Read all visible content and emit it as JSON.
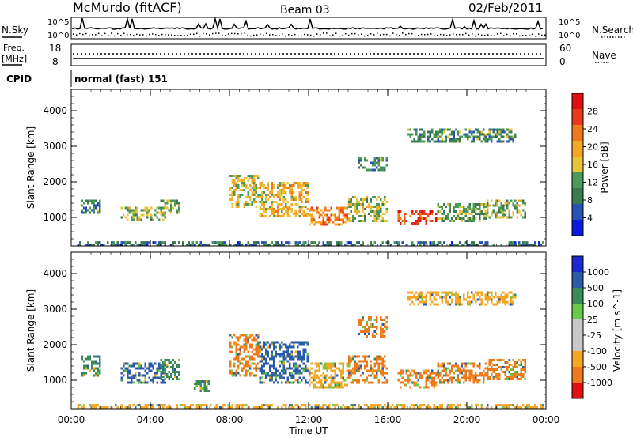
{
  "header": {
    "station": "McMurdo (fitACF)",
    "beam": "Beam 03",
    "date": "02/Feb/2011"
  },
  "aux_panels": {
    "left_labels": {
      "nsky": "N.Sky",
      "freq": "Freq.",
      "freq_unit": "[MHz]",
      "cpid": "CPID"
    },
    "right_labels": {
      "nsearch": "N.Search",
      "nave": "Nave"
    },
    "noise_ticks": [
      "10^5",
      "10^0"
    ],
    "noise_ticks_right": [
      "10^5",
      "10^0"
    ],
    "freq_ticks": [
      "18",
      "8"
    ],
    "nave_ticks": [
      "60",
      "0"
    ],
    "cpid_text": "normal (fast) 151"
  },
  "colors": {
    "power_scale": [
      "#0a1adc",
      "#2851b4",
      "#3a7a4e",
      "#4a9a5a",
      "#e8c43a",
      "#f5a623",
      "#f07a1a",
      "#e83a1a",
      "#e01010"
    ],
    "velocity_scale": [
      "#e01010",
      "#f07a1a",
      "#f5a623",
      "#c8c8c8",
      "#c8c8c8",
      "#6ac84a",
      "#3a8a5a",
      "#2a5aaa",
      "#1a2ad0"
    ]
  },
  "chart_data": [
    {
      "type": "heatmap",
      "name": "power",
      "xlabel": "",
      "ylabel": "Slant Range [km]",
      "ylim": [
        200,
        4600
      ],
      "yticks": [
        "1000",
        "2000",
        "3000",
        "4000"
      ],
      "colorbar_label": "Power [dB]",
      "colorbar_ticks": [
        "4",
        "8",
        "12",
        "16",
        "20",
        "24",
        "28"
      ],
      "colorbar_range": [
        0,
        32
      ],
      "cells": [
        {
          "x": [
            0.3,
            24.0
          ],
          "y": [
            230,
            330
          ],
          "v": 8
        },
        {
          "x": [
            0.5,
            1.5
          ],
          "y": [
            1100,
            1500
          ],
          "v": 10
        },
        {
          "x": [
            2.5,
            4.8
          ],
          "y": [
            900,
            1300
          ],
          "v": 14
        },
        {
          "x": [
            4.5,
            5.5
          ],
          "y": [
            1100,
            1500
          ],
          "v": 12
        },
        {
          "x": [
            8.0,
            9.5
          ],
          "y": [
            1300,
            2200
          ],
          "v": 16
        },
        {
          "x": [
            9.5,
            12.0
          ],
          "y": [
            1000,
            2000
          ],
          "v": 18
        },
        {
          "x": [
            12.0,
            14.0
          ],
          "y": [
            800,
            1300
          ],
          "v": 22
        },
        {
          "x": [
            14.0,
            16.0
          ],
          "y": [
            900,
            1600
          ],
          "v": 14
        },
        {
          "x": [
            16.5,
            18.5
          ],
          "y": [
            800,
            1200
          ],
          "v": 26
        },
        {
          "x": [
            18.5,
            21.0
          ],
          "y": [
            900,
            1400
          ],
          "v": 12
        },
        {
          "x": [
            21.0,
            23.0
          ],
          "y": [
            1000,
            1500
          ],
          "v": 14
        },
        {
          "x": [
            17.0,
            22.5
          ],
          "y": [
            3100,
            3500
          ],
          "v": 10
        },
        {
          "x": [
            14.5,
            16.0
          ],
          "y": [
            2300,
            2700
          ],
          "v": 10
        }
      ]
    },
    {
      "type": "heatmap",
      "name": "velocity",
      "xlabel": "Time UT",
      "ylabel": "Slant Range [km]",
      "ylim": [
        200,
        4600
      ],
      "yticks": [
        "1000",
        "2000",
        "3000",
        "4000"
      ],
      "xticks": [
        "00:00",
        "04:00",
        "08:00",
        "12:00",
        "16:00",
        "20:00",
        "00:00"
      ],
      "xlim": [
        0,
        24
      ],
      "colorbar_label": "Velocity [m s^-1]",
      "colorbar_ticks": [
        "1000",
        "500",
        "100",
        "25",
        "-25",
        "-100",
        "-500",
        "-1000"
      ],
      "cells": [
        {
          "x": [
            0.3,
            24.0
          ],
          "y": [
            230,
            330
          ],
          "v": -100
        },
        {
          "x": [
            0.5,
            1.5
          ],
          "y": [
            1100,
            1700
          ],
          "v": 100
        },
        {
          "x": [
            2.5,
            4.8
          ],
          "y": [
            900,
            1500
          ],
          "v": 500
        },
        {
          "x": [
            4.5,
            5.5
          ],
          "y": [
            1000,
            1600
          ],
          "v": 100
        },
        {
          "x": [
            6.2,
            7.0
          ],
          "y": [
            700,
            1000
          ],
          "v": 100
        },
        {
          "x": [
            8.0,
            9.5
          ],
          "y": [
            1100,
            2300
          ],
          "v": -500
        },
        {
          "x": [
            9.5,
            12.0
          ],
          "y": [
            900,
            2100
          ],
          "v": 500
        },
        {
          "x": [
            12.0,
            14.0
          ],
          "y": [
            800,
            1500
          ],
          "v": -100
        },
        {
          "x": [
            14.0,
            16.0
          ],
          "y": [
            900,
            1700
          ],
          "v": -500
        },
        {
          "x": [
            16.5,
            18.5
          ],
          "y": [
            800,
            1300
          ],
          "v": -500
        },
        {
          "x": [
            18.5,
            21.0
          ],
          "y": [
            900,
            1500
          ],
          "v": -500
        },
        {
          "x": [
            21.0,
            23.0
          ],
          "y": [
            1000,
            1600
          ],
          "v": -500
        },
        {
          "x": [
            17.0,
            22.5
          ],
          "y": [
            3100,
            3500
          ],
          "v": -100
        },
        {
          "x": [
            14.5,
            16.0
          ],
          "y": [
            2200,
            2800
          ],
          "v": -500
        }
      ]
    }
  ]
}
